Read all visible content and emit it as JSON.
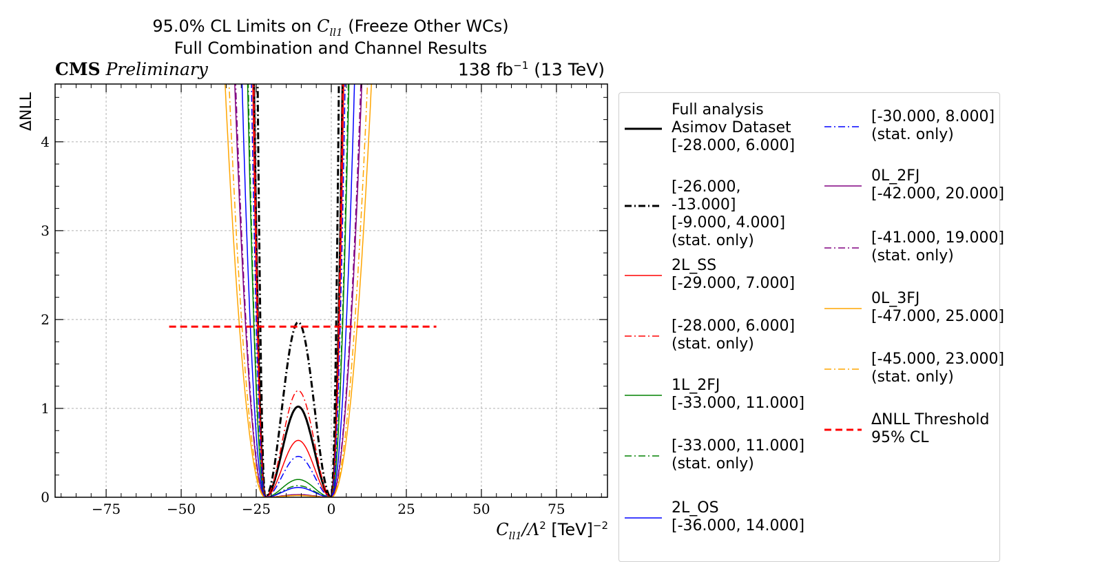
{
  "title": {
    "line1_prefix": "95.0% CL Limits on ",
    "line1_var": "C",
    "line1_sub": "ll1",
    "line1_suffix": " (Freeze Other WCs)",
    "line2": "Full Combination and Channel Results"
  },
  "header": {
    "experiment": "CMS",
    "status": "Preliminary",
    "lumi_value": "138 fb",
    "lumi_exp": "−1",
    "energy": " (13 TeV)"
  },
  "chart_data": {
    "type": "line",
    "xlabel_var": "C",
    "xlabel_sub": "ll1",
    "xlabel_mid": "/Λ",
    "xlabel_exp": "2",
    "xlabel_unit": " [TeV]",
    "xlabel_unit_exp": "−2",
    "ylabel": "ΔNLL",
    "xlim": [
      -92,
      92
    ],
    "ylim": [
      0,
      4.65
    ],
    "xticks": [
      -75,
      -50,
      -25,
      0,
      25,
      50,
      75
    ],
    "xtick_labels": [
      "−75",
      "−50",
      "−25",
      "0",
      "25",
      "50",
      "75"
    ],
    "yticks": [
      0,
      1,
      2,
      3,
      4
    ],
    "ytick_labels": [
      "0",
      "1",
      "2",
      "3",
      "4"
    ],
    "grid": true,
    "legend_position": "outside-right",
    "threshold": {
      "y": 1.92,
      "x": [
        -54,
        35
      ]
    },
    "series": [
      {
        "id": "full",
        "legend": "Full analysis\nAsimov Dataset\n[-28.000, 6.000]",
        "color": "#000000",
        "dash": "solid",
        "width": 3,
        "m1": -22,
        "m2": 0,
        "k1": 0.33,
        "k2": 0.33,
        "bump": 1.02,
        "bx": -11,
        "bw": 4.0,
        "xr": [
          -34,
          12
        ]
      },
      {
        "id": "full-stat",
        "legend": "[-26.000, -13.000]\n[-9.000, 4.000]\n(stat. only)",
        "color": "#000000",
        "dash": "dashdot",
        "width": 3,
        "m1": -22,
        "m2": 0,
        "k1": 0.73,
        "k2": 0.73,
        "bump": 1.97,
        "bx": -11,
        "bw": 2.8,
        "xr": [
          -31,
          9
        ]
      },
      {
        "id": "2lss",
        "legend": "2L_SS\n[-29.000, 7.000]",
        "color": "#ff0000",
        "dash": "solid",
        "width": 1.5,
        "m1": -22,
        "m2": 0,
        "k1": 0.27,
        "k2": 0.27,
        "bump": 0.64,
        "bx": -11,
        "bw": 4.0,
        "xr": [
          -36,
          14
        ]
      },
      {
        "id": "2lss-stat",
        "legend": "[-28.000, 6.000]\n(stat. only)",
        "color": "#ff0000",
        "dash": "dashdot",
        "width": 1.5,
        "m1": -22,
        "m2": 0,
        "k1": 0.33,
        "k2": 0.33,
        "bump": 1.2,
        "bx": -11,
        "bw": 4.0,
        "xr": [
          -34,
          12
        ]
      },
      {
        "id": "1l2fj",
        "legend": "1L_2FJ\n[-33.000, 11.000]",
        "color": "#008000",
        "dash": "solid",
        "width": 1.5,
        "m1": -22,
        "m2": 0,
        "k1": 0.135,
        "k2": 0.135,
        "bump": 0.2,
        "bx": -11,
        "bw": 4.5,
        "xr": [
          -42,
          20
        ]
      },
      {
        "id": "1l2fj-stat",
        "legend": "[-33.000, 11.000]\n(stat. only)",
        "color": "#008000",
        "dash": "dashdot",
        "width": 1.5,
        "m1": -22,
        "m2": 0,
        "k1": 0.145,
        "k2": 0.145,
        "bump": 0.13,
        "bx": -11,
        "bw": 4.5,
        "xr": [
          -42,
          20
        ]
      },
      {
        "id": "2los",
        "legend": "2L_OS\n[-36.000, 14.000]",
        "color": "#0000ff",
        "dash": "solid",
        "width": 1.5,
        "m1": -22,
        "m2": 0,
        "k1": 0.078,
        "k2": 0.078,
        "bump": 0.11,
        "bx": -11,
        "bw": 5.0,
        "xr": [
          -42,
          24
        ]
      },
      {
        "id": "2los-stat",
        "legend": "[-30.000, 8.000]\n(stat. only)",
        "color": "#0000ff",
        "dash": "dashdot",
        "width": 1.5,
        "m1": -22,
        "m2": 0,
        "k1": 0.22,
        "k2": 0.22,
        "bump": 0.46,
        "bx": -11,
        "bw": 4.0,
        "xr": [
          -36,
          14
        ]
      },
      {
        "id": "0l2fj",
        "legend": "0L_2FJ\n[-42.000, 20.000]",
        "color": "#800080",
        "dash": "solid",
        "width": 1.5,
        "m1": -22,
        "m2": 0,
        "k1": 0.045,
        "k2": 0.045,
        "bump": 0.03,
        "bx": -11,
        "bw": 5.0,
        "xr": [
          -49,
          28
        ]
      },
      {
        "id": "0l2fj-stat",
        "legend": "[-41.000, 19.000]\n(stat. only)",
        "color": "#800080",
        "dash": "dashdot",
        "width": 1.5,
        "m1": -22,
        "m2": 0,
        "k1": 0.048,
        "k2": 0.048,
        "bump": 0.03,
        "bx": -11,
        "bw": 5.0,
        "xr": [
          -48,
          27
        ]
      },
      {
        "id": "0l3fj",
        "legend": "0L_3FJ\n[-47.000, 25.000]",
        "color": "#ffa500",
        "dash": "solid",
        "width": 1.5,
        "m1": -22,
        "m2": 0,
        "k1": 0.026,
        "k2": 0.026,
        "bump": 0.02,
        "bx": -11,
        "bw": 5.0,
        "xr": [
          -55,
          34
        ]
      },
      {
        "id": "0l3fj-stat",
        "legend": "[-45.000, 23.000]\n(stat. only)",
        "color": "#ffa500",
        "dash": "dashdot",
        "width": 1.5,
        "m1": -22,
        "m2": 0,
        "k1": 0.032,
        "k2": 0.032,
        "bump": 0.02,
        "bx": -11,
        "bw": 5.0,
        "xr": [
          -53,
          32
        ]
      }
    ],
    "threshold_legend": "ΔNLL Threshold\n95% CL",
    "threshold_color": "#ff0000"
  }
}
